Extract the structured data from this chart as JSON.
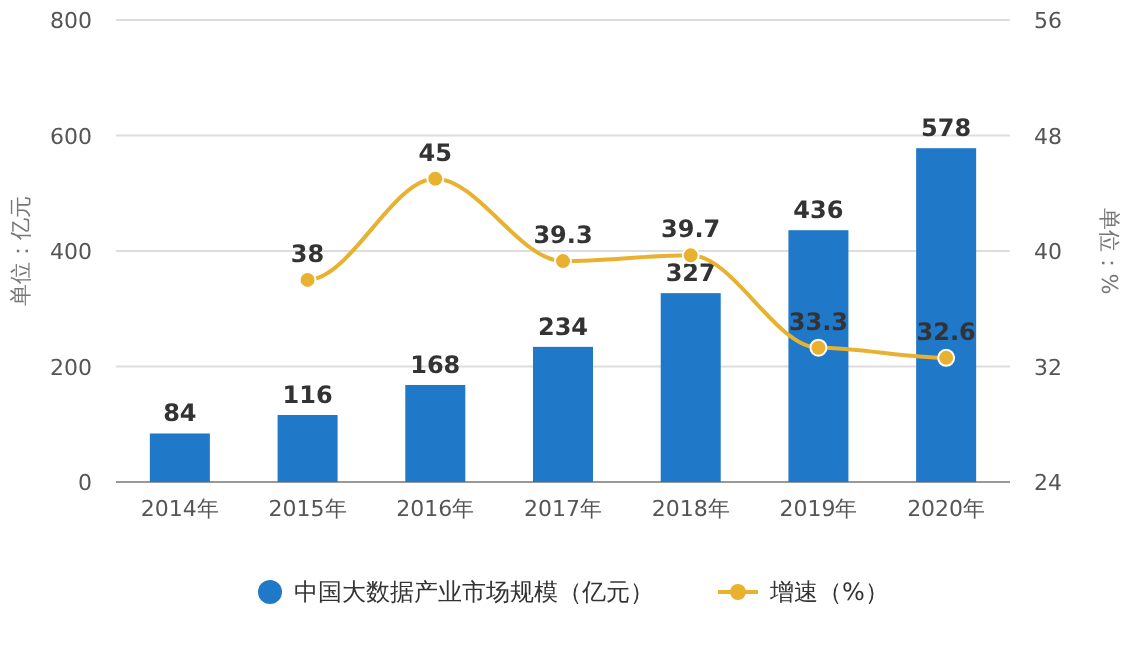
{
  "chart_data": {
    "type": "bar",
    "categories": [
      "2014年",
      "2015年",
      "2016年",
      "2017年",
      "2018年",
      "2019年",
      "2020年"
    ],
    "series": [
      {
        "name": "中国大数据产业市场规模（亿元）",
        "color": "#1f78c8",
        "values": [
          84,
          116,
          168,
          234,
          327,
          436,
          578
        ]
      },
      {
        "name": "增速（%）",
        "type": "line",
        "axis": "y2",
        "color": "#e8b230",
        "marker": "circle",
        "values": [
          null,
          38,
          45,
          39.3,
          39.7,
          33.3,
          32.6
        ]
      }
    ],
    "ylabel": "单位：亿元",
    "y2label": "单位：%",
    "ylim": [
      0,
      800
    ],
    "yticks": [
      0,
      200,
      400,
      600,
      800
    ],
    "y2lim": [
      24,
      56
    ],
    "y2ticks": [
      24,
      32,
      40,
      48,
      56
    ],
    "grid": "y",
    "legend": "bottom",
    "data_labels": true
  }
}
